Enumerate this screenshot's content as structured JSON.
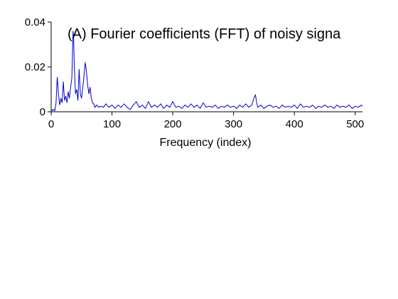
{
  "chart_data": {
    "type": "line",
    "title": "(A) Fourier coefficients (FFT) of noisy signa",
    "xlabel": "Frequency (index)",
    "ylabel": "",
    "xlim": [
      0,
      512
    ],
    "ylim": [
      0,
      0.04
    ],
    "x_ticks": [
      0,
      100,
      200,
      300,
      400,
      500
    ],
    "x_tick_labels": [
      "0",
      "100",
      "200",
      "300",
      "400",
      "500"
    ],
    "y_ticks": [
      0,
      0.02,
      0.04
    ],
    "y_tick_labels": [
      "0",
      "0.02",
      "0.04"
    ],
    "grid": false,
    "line_color": "#0000cc",
    "series": [
      {
        "name": "",
        "points": [
          [
            0,
            0.001
          ],
          [
            2,
            0.0005
          ],
          [
            4,
            0.001
          ],
          [
            6,
            0.0005
          ],
          [
            8,
            0.004
          ],
          [
            10,
            0.0155
          ],
          [
            12,
            0.008
          ],
          [
            14,
            0.003
          ],
          [
            16,
            0.006
          ],
          [
            18,
            0.004
          ],
          [
            20,
            0.0135
          ],
          [
            22,
            0.005
          ],
          [
            24,
            0.007
          ],
          [
            26,
            0.004
          ],
          [
            28,
            0.009
          ],
          [
            30,
            0.006
          ],
          [
            32,
            0.011
          ],
          [
            34,
            0.015
          ],
          [
            36,
            0.036
          ],
          [
            37,
            0.033
          ],
          [
            38,
            0.02
          ],
          [
            40,
            0.008
          ],
          [
            42,
            0.01
          ],
          [
            44,
            0.005
          ],
          [
            46,
            0.019
          ],
          [
            48,
            0.008
          ],
          [
            50,
            0.006
          ],
          [
            52,
            0.011
          ],
          [
            54,
            0.016
          ],
          [
            56,
            0.022
          ],
          [
            58,
            0.018
          ],
          [
            60,
            0.012
          ],
          [
            62,
            0.008
          ],
          [
            64,
            0.011
          ],
          [
            66,
            0.006
          ],
          [
            68,
            0.004
          ],
          [
            70,
            0.0035
          ],
          [
            72,
            0.002
          ],
          [
            75,
            0.003
          ],
          [
            78,
            0.002
          ],
          [
            82,
            0.0025
          ],
          [
            86,
            0.002
          ],
          [
            90,
            0.0035
          ],
          [
            95,
            0.002
          ],
          [
            100,
            0.003
          ],
          [
            105,
            0.0015
          ],
          [
            110,
            0.003
          ],
          [
            115,
            0.002
          ],
          [
            120,
            0.0035
          ],
          [
            125,
            0.002
          ],
          [
            130,
            0.001
          ],
          [
            135,
            0.003
          ],
          [
            140,
            0.0045
          ],
          [
            145,
            0.002
          ],
          [
            150,
            0.003
          ],
          [
            155,
            0.0015
          ],
          [
            160,
            0.0045
          ],
          [
            165,
            0.002
          ],
          [
            170,
            0.003
          ],
          [
            175,
            0.002
          ],
          [
            180,
            0.0035
          ],
          [
            185,
            0.0015
          ],
          [
            190,
            0.003
          ],
          [
            195,
            0.002
          ],
          [
            200,
            0.0045
          ],
          [
            205,
            0.002
          ],
          [
            210,
            0.0025
          ],
          [
            215,
            0.0015
          ],
          [
            220,
            0.003
          ],
          [
            225,
            0.002
          ],
          [
            230,
            0.0035
          ],
          [
            235,
            0.002
          ],
          [
            240,
            0.003
          ],
          [
            245,
            0.0015
          ],
          [
            250,
            0.004
          ],
          [
            255,
            0.002
          ],
          [
            260,
            0.0025
          ],
          [
            265,
            0.002
          ],
          [
            270,
            0.003
          ],
          [
            275,
            0.0015
          ],
          [
            280,
            0.0025
          ],
          [
            285,
            0.002
          ],
          [
            290,
            0.003
          ],
          [
            295,
            0.002
          ],
          [
            300,
            0.0025
          ],
          [
            305,
            0.0015
          ],
          [
            310,
            0.003
          ],
          [
            315,
            0.002
          ],
          [
            320,
            0.0035
          ],
          [
            325,
            0.002
          ],
          [
            330,
            0.003
          ],
          [
            334,
            0.0065
          ],
          [
            336,
            0.0075
          ],
          [
            338,
            0.004
          ],
          [
            340,
            0.002
          ],
          [
            345,
            0.003
          ],
          [
            350,
            0.0015
          ],
          [
            355,
            0.0025
          ],
          [
            360,
            0.003
          ],
          [
            365,
            0.002
          ],
          [
            370,
            0.0025
          ],
          [
            375,
            0.0015
          ],
          [
            380,
            0.003
          ],
          [
            385,
            0.002
          ],
          [
            390,
            0.0025
          ],
          [
            395,
            0.002
          ],
          [
            400,
            0.003
          ],
          [
            405,
            0.0015
          ],
          [
            410,
            0.0035
          ],
          [
            415,
            0.002
          ],
          [
            420,
            0.0025
          ],
          [
            425,
            0.002
          ],
          [
            430,
            0.003
          ],
          [
            435,
            0.0015
          ],
          [
            440,
            0.0025
          ],
          [
            445,
            0.002
          ],
          [
            450,
            0.003
          ],
          [
            455,
            0.002
          ],
          [
            460,
            0.0025
          ],
          [
            465,
            0.0015
          ],
          [
            470,
            0.003
          ],
          [
            475,
            0.002
          ],
          [
            480,
            0.0025
          ],
          [
            485,
            0.002
          ],
          [
            490,
            0.003
          ],
          [
            495,
            0.0015
          ],
          [
            500,
            0.0025
          ],
          [
            505,
            0.002
          ],
          [
            510,
            0.003
          ],
          [
            512,
            0.0025
          ]
        ]
      }
    ]
  }
}
